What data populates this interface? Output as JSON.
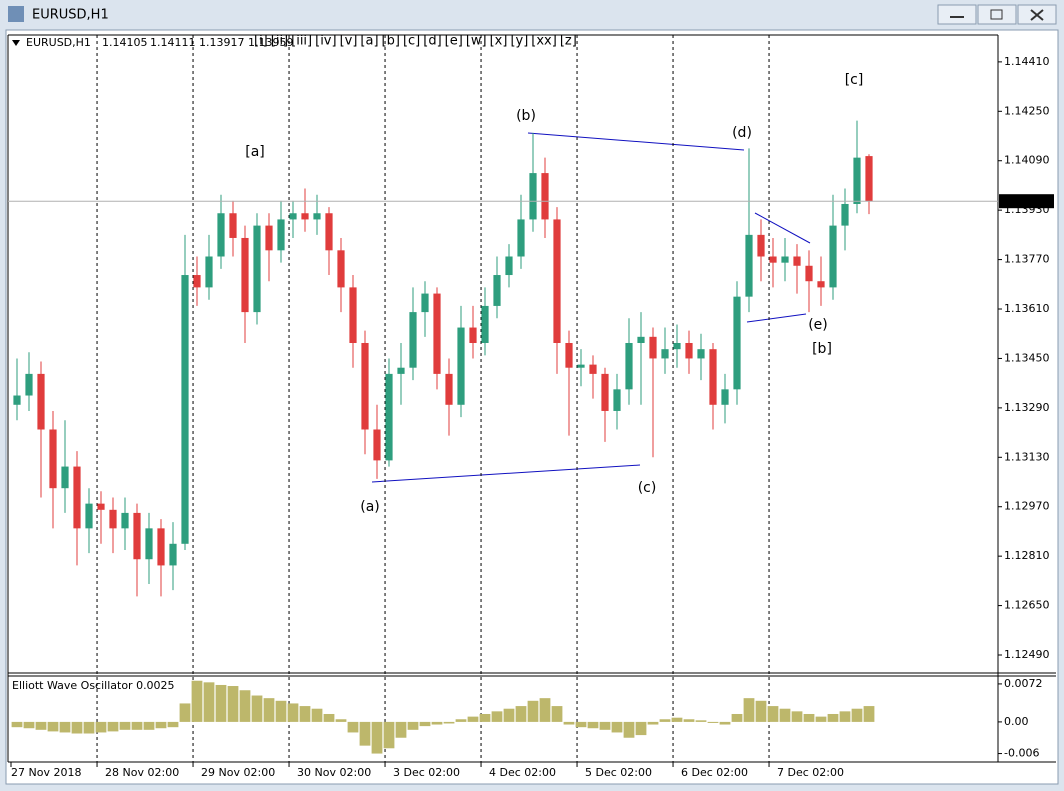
{
  "window": {
    "title": "EURUSD,H1"
  },
  "wave_buttons": [
    "[i]",
    "[ii]",
    "[iii]",
    "[iv]",
    "[v]",
    "[a]",
    "[b]",
    "[c]",
    "[d]",
    "[e]",
    "[w]",
    "[x]",
    "[y]",
    "[xx]",
    "[z]"
  ],
  "annotations": [
    "[a]",
    "(a)",
    "(b)",
    "(c)",
    "(d)",
    "(e)",
    "[b]",
    "[c]"
  ],
  "chart_data": [
    {
      "type": "candlestick",
      "title": "EURUSD,H1",
      "up_color": "#2e9e7e",
      "down_color": "#e03c3c",
      "ohlc": [
        [
          1.133,
          1.1345,
          1.1325,
          1.1333
        ],
        [
          1.1333,
          1.1347,
          1.1328,
          1.134
        ],
        [
          1.134,
          1.1344,
          1.13,
          1.1322
        ],
        [
          1.1322,
          1.1328,
          1.129,
          1.1303
        ],
        [
          1.1303,
          1.1325,
          1.1295,
          1.131
        ],
        [
          1.131,
          1.1315,
          1.1278,
          1.129
        ],
        [
          1.129,
          1.1303,
          1.1282,
          1.1298
        ],
        [
          1.1298,
          1.1302,
          1.1285,
          1.1296
        ],
        [
          1.1296,
          1.13,
          1.1282,
          1.129
        ],
        [
          1.129,
          1.13,
          1.1283,
          1.1295
        ],
        [
          1.1295,
          1.1298,
          1.1268,
          1.128
        ],
        [
          1.128,
          1.1295,
          1.1272,
          1.129
        ],
        [
          1.129,
          1.1293,
          1.1268,
          1.1278
        ],
        [
          1.1278,
          1.1292,
          1.127,
          1.1285
        ],
        [
          1.1285,
          1.1385,
          1.1283,
          1.1372
        ],
        [
          1.1372,
          1.1378,
          1.1362,
          1.1368
        ],
        [
          1.1368,
          1.1385,
          1.1364,
          1.1378
        ],
        [
          1.1378,
          1.1398,
          1.1374,
          1.1392
        ],
        [
          1.1392,
          1.1396,
          1.1378,
          1.1384
        ],
        [
          1.1384,
          1.1388,
          1.135,
          1.136
        ],
        [
          1.136,
          1.1392,
          1.1356,
          1.1388
        ],
        [
          1.1388,
          1.1392,
          1.137,
          1.138
        ],
        [
          1.138,
          1.1396,
          1.1376,
          1.139
        ],
        [
          1.139,
          1.1396,
          1.1384,
          1.1392
        ],
        [
          1.1392,
          1.14,
          1.1386,
          1.139
        ],
        [
          1.139,
          1.1398,
          1.1385,
          1.1392
        ],
        [
          1.1392,
          1.1394,
          1.1372,
          1.138
        ],
        [
          1.138,
          1.1384,
          1.136,
          1.1368
        ],
        [
          1.1368,
          1.1372,
          1.1342,
          1.135
        ],
        [
          1.135,
          1.1354,
          1.1314,
          1.1322
        ],
        [
          1.1322,
          1.133,
          1.1306,
          1.1312
        ],
        [
          1.1312,
          1.1345,
          1.131,
          1.134
        ],
        [
          1.134,
          1.135,
          1.133,
          1.1342
        ],
        [
          1.1342,
          1.1368,
          1.1338,
          1.136
        ],
        [
          1.136,
          1.137,
          1.1352,
          1.1366
        ],
        [
          1.1366,
          1.1368,
          1.1335,
          1.134
        ],
        [
          1.134,
          1.1345,
          1.132,
          1.133
        ],
        [
          1.133,
          1.1362,
          1.1326,
          1.1355
        ],
        [
          1.1355,
          1.1362,
          1.1345,
          1.135
        ],
        [
          1.135,
          1.1368,
          1.1346,
          1.1362
        ],
        [
          1.1362,
          1.1378,
          1.1358,
          1.1372
        ],
        [
          1.1372,
          1.1382,
          1.1368,
          1.1378
        ],
        [
          1.1378,
          1.1398,
          1.1374,
          1.139
        ],
        [
          1.139,
          1.1418,
          1.1386,
          1.1405
        ],
        [
          1.1405,
          1.141,
          1.1384,
          1.139
        ],
        [
          1.139,
          1.1394,
          1.134,
          1.135
        ],
        [
          1.135,
          1.1354,
          1.132,
          1.1342
        ],
        [
          1.1342,
          1.1348,
          1.1336,
          1.1343
        ],
        [
          1.1343,
          1.1346,
          1.1332,
          1.134
        ],
        [
          1.134,
          1.1342,
          1.1318,
          1.1328
        ],
        [
          1.1328,
          1.134,
          1.1322,
          1.1335
        ],
        [
          1.1335,
          1.1358,
          1.133,
          1.135
        ],
        [
          1.135,
          1.136,
          1.133,
          1.1352
        ],
        [
          1.1352,
          1.1355,
          1.1313,
          1.1345
        ],
        [
          1.1345,
          1.1355,
          1.134,
          1.1348
        ],
        [
          1.1348,
          1.1356,
          1.1342,
          1.135
        ],
        [
          1.135,
          1.1354,
          1.134,
          1.1345
        ],
        [
          1.1345,
          1.1353,
          1.1338,
          1.1348
        ],
        [
          1.1348,
          1.135,
          1.1322,
          1.133
        ],
        [
          1.133,
          1.134,
          1.1324,
          1.1335
        ],
        [
          1.1335,
          1.137,
          1.133,
          1.1365
        ],
        [
          1.1365,
          1.1413,
          1.136,
          1.1385
        ],
        [
          1.1385,
          1.139,
          1.137,
          1.1378
        ],
        [
          1.1378,
          1.1384,
          1.1368,
          1.1376
        ],
        [
          1.1376,
          1.1384,
          1.137,
          1.1378
        ],
        [
          1.1378,
          1.1382,
          1.1366,
          1.1375
        ],
        [
          1.1375,
          1.138,
          1.136,
          1.137
        ],
        [
          1.137,
          1.1378,
          1.1362,
          1.1368
        ],
        [
          1.1368,
          1.1398,
          1.1364,
          1.1388
        ],
        [
          1.1388,
          1.14,
          1.138,
          1.1395
        ],
        [
          1.1395,
          1.1422,
          1.1392,
          1.141
        ],
        [
          1.14105,
          1.14111,
          1.13917,
          1.13959
        ]
      ],
      "xlim": [
        -0.75,
        81.75
      ],
      "xticks": [
        {
          "value": -0.5,
          "label": "27 Nov 2018"
        },
        {
          "value": 6.67,
          "label": "28 Nov 02:00"
        },
        {
          "value": 14.67,
          "label": "29 Nov 02:00"
        },
        {
          "value": 22.67,
          "label": "30 Nov 02:00"
        },
        {
          "value": 30.67,
          "label": "3 Dec 02:00"
        },
        {
          "value": 38.67,
          "label": "4 Dec 02:00"
        },
        {
          "value": 46.67,
          "label": "5 Dec 02:00"
        },
        {
          "value": 54.67,
          "label": "6 Dec 02:00"
        },
        {
          "value": 62.67,
          "label": "7 Dec 02:00"
        }
      ],
      "ylim": [
        1.12435,
        1.14497
      ],
      "yticks": [
        {
          "value": 1.1441,
          "label": "1.14410"
        },
        {
          "value": 1.1425,
          "label": "1.14250"
        },
        {
          "value": 1.1409,
          "label": "1.14090"
        },
        {
          "value": 1.1393,
          "label": "1.13930"
        },
        {
          "value": 1.1377,
          "label": "1.13770"
        },
        {
          "value": 1.1361,
          "label": "1.13610"
        },
        {
          "value": 1.1345,
          "label": "1.13450"
        },
        {
          "value": 1.1329,
          "label": "1.13290"
        },
        {
          "value": 1.1313,
          "label": "1.13130"
        },
        {
          "value": 1.1297,
          "label": "1.12970"
        },
        {
          "value": 1.1281,
          "label": "1.12810"
        },
        {
          "value": 1.1265,
          "label": "1.12650"
        },
        {
          "value": 1.1249,
          "label": "1.12490"
        }
      ]
    },
    {
      "type": "bar",
      "title": "Elliott Wave Oscillator 0.0025",
      "color": "#bdb76b",
      "values": [
        -0.001,
        -0.0012,
        -0.0015,
        -0.0018,
        -0.002,
        -0.0022,
        -0.0022,
        -0.002,
        -0.0018,
        -0.0015,
        -0.0015,
        -0.0015,
        -0.0012,
        -0.001,
        0.0035,
        0.0078,
        0.0075,
        0.007,
        0.0068,
        0.006,
        0.005,
        0.0045,
        0.004,
        0.0035,
        0.003,
        0.0025,
        0.0015,
        0.0005,
        -0.002,
        -0.0045,
        -0.006,
        -0.005,
        -0.003,
        -0.0015,
        -0.0008,
        -0.0005,
        -0.0003,
        0.0005,
        0.001,
        0.0015,
        0.002,
        0.0025,
        0.003,
        0.004,
        0.0045,
        0.003,
        -0.0005,
        -0.001,
        -0.0012,
        -0.0015,
        -0.002,
        -0.003,
        -0.0025,
        -0.0005,
        0.0005,
        0.0008,
        0.0005,
        0.0003,
        -0.0002,
        -0.0005,
        0.0015,
        0.0045,
        0.004,
        0.003,
        0.0025,
        0.002,
        0.0015,
        0.001,
        0.0015,
        0.002,
        0.0025,
        0.003
      ],
      "ylim": [
        -0.0076,
        0.0087
      ],
      "yticks": [
        0.0072,
        {
          "value": 0,
          "label": "0.00"
        },
        -0.006
      ]
    }
  ]
}
